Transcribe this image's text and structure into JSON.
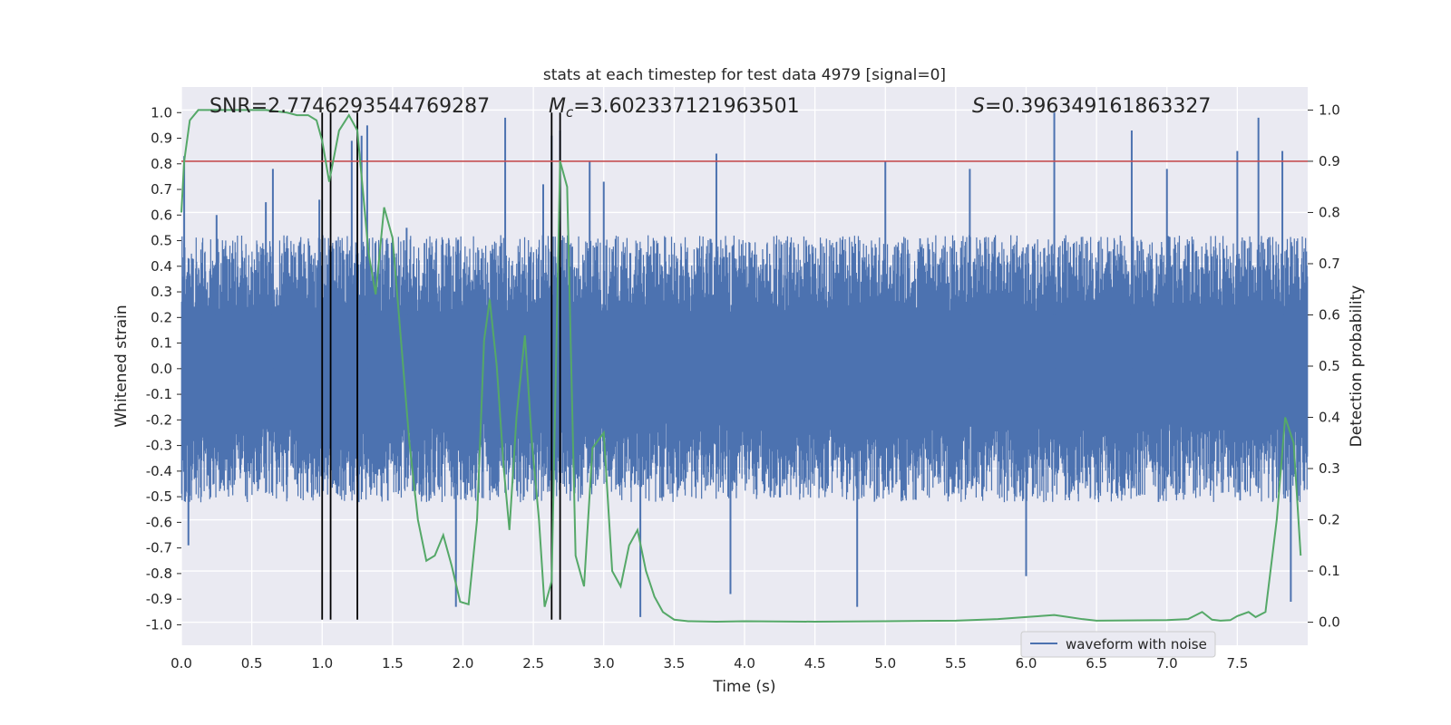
{
  "chart_data": {
    "type": "line",
    "title": "stats at each timestep for test data 4979 [signal=0]",
    "xlabel": "Time (s)",
    "ylabel_left": "Whitened strain",
    "ylabel_right": "Detection probability",
    "xlim": [
      0.0,
      8.0
    ],
    "ylim_left": [
      -1.08,
      1.1
    ],
    "ylim_right": [
      -0.045,
      1.045
    ],
    "x_ticks": [
      "0.0",
      "0.5",
      "1.0",
      "1.5",
      "2.0",
      "2.5",
      "3.0",
      "3.5",
      "4.0",
      "4.5",
      "5.0",
      "5.5",
      "6.0",
      "6.5",
      "7.0",
      "7.5"
    ],
    "y_ticks_left": [
      "1.0",
      "0.9",
      "0.8",
      "0.7",
      "0.6",
      "0.5",
      "0.4",
      "0.3",
      "0.2",
      "0.1",
      "0.0",
      "-0.1",
      "-0.2",
      "-0.3",
      "-0.4",
      "-0.5",
      "-0.6",
      "-0.7",
      "-0.8",
      "-0.9",
      "-1.0"
    ],
    "y_ticks_right": [
      "1.0",
      "0.9",
      "0.8",
      "0.7",
      "0.6",
      "0.5",
      "0.4",
      "0.3",
      "0.2",
      "0.1",
      "0.0"
    ],
    "grid": true,
    "legend": {
      "placement": "lower-right",
      "entries": [
        "waveform with noise"
      ]
    },
    "annotations": {
      "snr": "SNR=2.7746293544769287",
      "mc_symbol": "M",
      "mc_sub": "c",
      "mc_value": "=3.602337121963501",
      "s_symbol": "S",
      "s_value": "=0.396349161863327"
    },
    "threshold": {
      "value": 0.9,
      "axis": "right"
    },
    "vertical_lines": [
      1.0,
      1.06,
      1.25,
      2.63,
      2.69
    ],
    "vertical_line_range": [
      -0.98,
      1.0
    ],
    "series": [
      {
        "name": "waveform with noise",
        "axis": "left",
        "kind": "noise",
        "core_amplitude": 0.21,
        "envelope_amplitude": 0.45,
        "peaks": [
          [
            0.02,
            0.83
          ],
          [
            0.05,
            -0.69
          ],
          [
            0.25,
            0.6
          ],
          [
            0.6,
            0.65
          ],
          [
            0.65,
            0.78
          ],
          [
            0.98,
            0.66
          ],
          [
            1.1,
            0.5
          ],
          [
            1.21,
            0.89
          ],
          [
            1.28,
            0.91
          ],
          [
            1.32,
            0.95
          ],
          [
            1.6,
            0.55
          ],
          [
            1.95,
            -0.93
          ],
          [
            2.3,
            0.98
          ],
          [
            2.57,
            0.72
          ],
          [
            2.63,
            0.91
          ],
          [
            2.69,
            0.93
          ],
          [
            2.9,
            0.81
          ],
          [
            3.0,
            0.73
          ],
          [
            3.26,
            -0.97
          ],
          [
            3.8,
            0.84
          ],
          [
            3.9,
            -0.88
          ],
          [
            4.8,
            -0.93
          ],
          [
            5.0,
            0.81
          ],
          [
            5.6,
            0.78
          ],
          [
            6.0,
            -0.81
          ],
          [
            6.2,
            1.0
          ],
          [
            6.75,
            0.93
          ],
          [
            7.0,
            0.78
          ],
          [
            7.5,
            0.85
          ],
          [
            7.65,
            0.98
          ],
          [
            7.82,
            0.85
          ],
          [
            7.88,
            -0.91
          ]
        ]
      },
      {
        "name": "detection probability",
        "axis": "right",
        "color": "#55a868",
        "x": [
          0.0,
          0.02,
          0.06,
          0.12,
          0.2,
          0.4,
          0.6,
          0.75,
          0.82,
          0.9,
          0.96,
          1.0,
          1.05,
          1.12,
          1.19,
          1.25,
          1.33,
          1.38,
          1.44,
          1.5,
          1.56,
          1.62,
          1.68,
          1.74,
          1.8,
          1.86,
          1.92,
          1.98,
          2.04,
          2.1,
          2.15,
          2.19,
          2.24,
          2.29,
          2.33,
          2.38,
          2.44,
          2.49,
          2.54,
          2.58,
          2.63,
          2.69,
          2.74,
          2.8,
          2.86,
          2.92,
          3.0,
          3.06,
          3.12,
          3.18,
          3.24,
          3.3,
          3.36,
          3.42,
          3.5,
          3.6,
          3.8,
          4.0,
          4.5,
          5.0,
          5.5,
          5.8,
          6.0,
          6.1,
          6.2,
          6.3,
          6.4,
          6.5,
          7.0,
          7.15,
          7.25,
          7.32,
          7.38,
          7.45,
          7.5,
          7.58,
          7.63,
          7.7,
          7.78,
          7.84,
          7.9,
          7.95
        ],
        "y": [
          0.8,
          0.9,
          0.98,
          1.0,
          1.0,
          1.0,
          1.0,
          0.995,
          0.99,
          0.99,
          0.98,
          0.94,
          0.86,
          0.96,
          0.99,
          0.96,
          0.72,
          0.64,
          0.81,
          0.75,
          0.55,
          0.35,
          0.2,
          0.12,
          0.13,
          0.17,
          0.11,
          0.04,
          0.035,
          0.2,
          0.55,
          0.63,
          0.5,
          0.3,
          0.18,
          0.4,
          0.56,
          0.35,
          0.2,
          0.03,
          0.08,
          0.9,
          0.85,
          0.13,
          0.07,
          0.34,
          0.37,
          0.1,
          0.07,
          0.15,
          0.18,
          0.1,
          0.05,
          0.02,
          0.005,
          0.002,
          0.001,
          0.002,
          0.001,
          0.002,
          0.003,
          0.006,
          0.01,
          0.012,
          0.014,
          0.01,
          0.006,
          0.003,
          0.004,
          0.006,
          0.02,
          0.005,
          0.003,
          0.004,
          0.012,
          0.02,
          0.01,
          0.02,
          0.2,
          0.4,
          0.35,
          0.13
        ]
      }
    ]
  }
}
